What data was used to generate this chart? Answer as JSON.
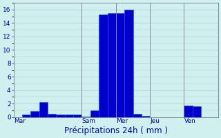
{
  "bar_values": [
    0,
    0.4,
    0.9,
    2.2,
    0.5,
    0.4,
    0.4,
    0.4,
    0.1,
    1.0,
    15.3,
    15.5,
    15.5,
    16.0,
    0.5,
    0.2,
    0,
    0,
    0,
    0,
    1.7,
    1.6,
    0,
    0
  ],
  "n_bars": 24,
  "ylim": [
    0,
    17
  ],
  "yticks": [
    0,
    2,
    4,
    6,
    8,
    10,
    12,
    14,
    16
  ],
  "day_labels": [
    "Mar",
    "Sam",
    "Mer",
    "Jeu",
    "Ven"
  ],
  "day_positions": [
    0,
    8,
    12,
    16,
    20
  ],
  "xlabel": "Précipitations 24h ( mm )",
  "bar_color": "#0000cc",
  "bar_edge_color": "#0055ff",
  "background_color": "#d0f0f0",
  "grid_color": "#b0cccc",
  "tick_color": "#0000aa",
  "label_color": "#0000aa",
  "tick_fontsize": 6.5,
  "xlabel_fontsize": 8.5,
  "separator_color": "#888899",
  "fig_width": 3.2,
  "fig_height": 2.0,
  "dpi": 100
}
